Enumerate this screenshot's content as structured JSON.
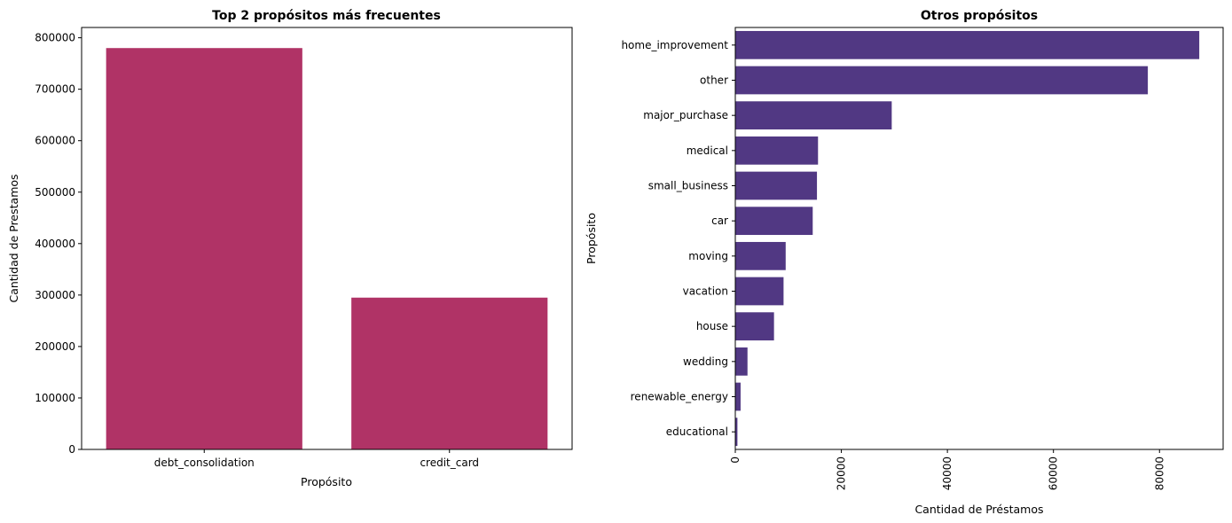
{
  "chart_data": [
    {
      "type": "bar",
      "orientation": "vertical",
      "title": "Top 2 propósitos más frecuentes",
      "xlabel": "Propósito",
      "ylabel": "Cantidad de Prestamos",
      "categories": [
        "debt_consolidation",
        "credit_card"
      ],
      "values": [
        780000,
        295000
      ],
      "ylim": [
        0,
        820000
      ],
      "yticks": [
        "0",
        "100000",
        "200000",
        "300000",
        "400000",
        "500000",
        "600000",
        "700000",
        "800000"
      ],
      "color": "#b03366",
      "grid": false
    },
    {
      "type": "bar",
      "orientation": "horizontal",
      "title": "Otros propósitos",
      "xlabel": "Cantidad de Préstamos",
      "ylabel": "Propósito",
      "categories": [
        "home_improvement",
        "other",
        "major_purchase",
        "medical",
        "small_business",
        "car",
        "moving",
        "vacation",
        "house",
        "wedding",
        "renewable_energy",
        "educational"
      ],
      "values": [
        87500,
        77800,
        29500,
        15600,
        15400,
        14600,
        9500,
        9100,
        7300,
        2300,
        1000,
        400
      ],
      "xlim": [
        0,
        92000
      ],
      "xticks": [
        "0",
        "20000",
        "40000",
        "60000",
        "80000"
      ],
      "xtick_rotation": "vertical",
      "color": "#513883",
      "grid": false
    }
  ]
}
